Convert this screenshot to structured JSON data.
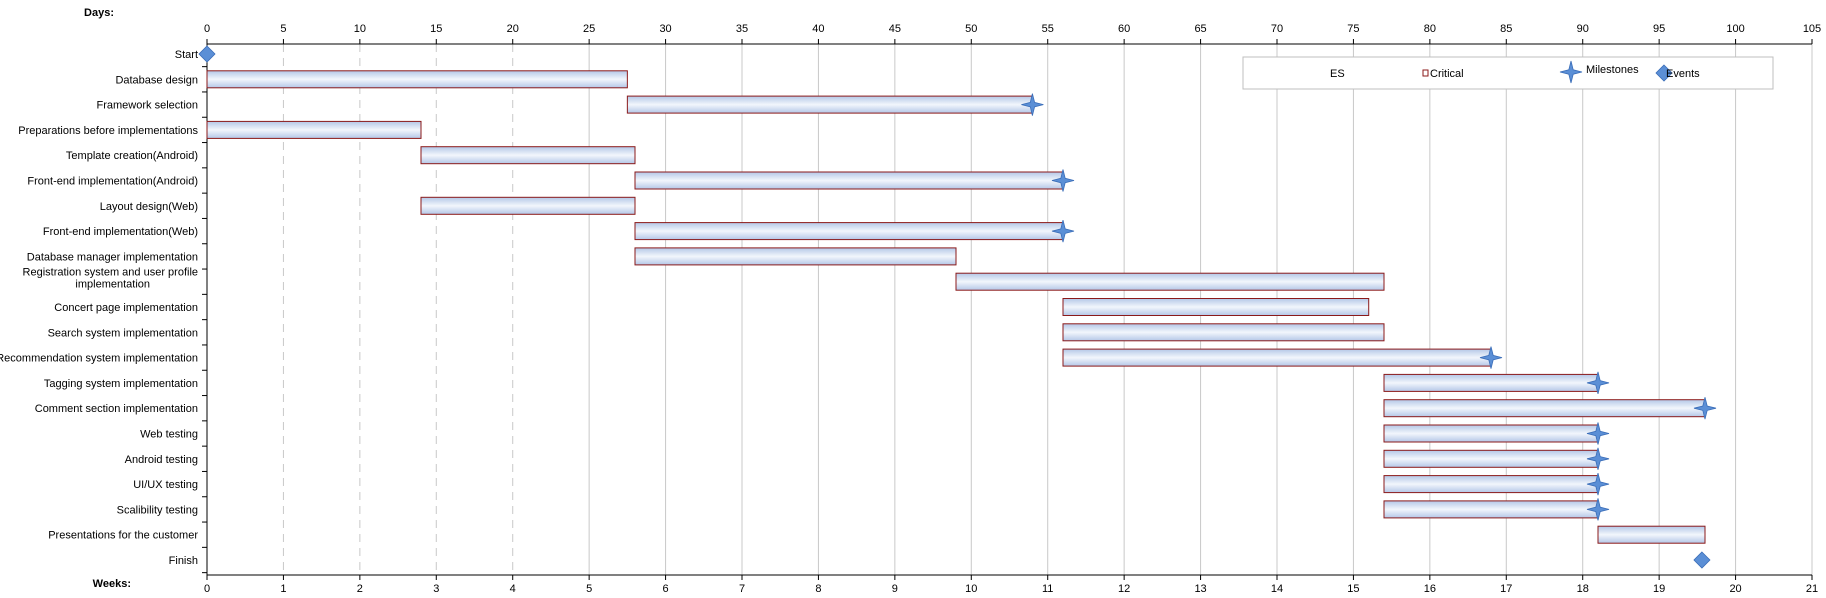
{
  "chart_data": {
    "type": "gantt",
    "top_axis_caption": "Days:",
    "bottom_axis_caption": "Weeks:",
    "day_ticks": [
      0,
      5,
      10,
      15,
      20,
      25,
      30,
      35,
      40,
      45,
      50,
      55,
      60,
      65,
      70,
      75,
      80,
      85,
      90,
      95,
      100,
      105
    ],
    "week_ticks": [
      0,
      1,
      2,
      3,
      4,
      5,
      6,
      7,
      8,
      9,
      10,
      11,
      12,
      13,
      14,
      15,
      16,
      17,
      18,
      19,
      20,
      21
    ],
    "xlim_days": [
      0,
      105
    ],
    "grid": true,
    "legend": {
      "placement": "top-right",
      "items": [
        {
          "label": "ES",
          "symbol": "none"
        },
        {
          "label": "Critical",
          "symbol": "critical-square"
        },
        {
          "label": "Milestones",
          "symbol": "star"
        },
        {
          "label": "Events",
          "symbol": "diamond"
        }
      ]
    },
    "tasks": [
      {
        "name": "Start",
        "start": 0,
        "end": 0,
        "marker": "event"
      },
      {
        "name": "Database design",
        "start": 0,
        "end": 27.5,
        "marker": null
      },
      {
        "name": "Framework selection",
        "start": 27.5,
        "end": 54,
        "marker": "milestone"
      },
      {
        "name": "Preparations before implementations",
        "start": 0,
        "end": 14,
        "marker": null
      },
      {
        "name": "Template creation(Android)",
        "start": 14,
        "end": 28,
        "marker": null
      },
      {
        "name": "Front-end implementation(Android)",
        "start": 28,
        "end": 56,
        "marker": "milestone"
      },
      {
        "name": "Layout design(Web)",
        "start": 14,
        "end": 28,
        "marker": null
      },
      {
        "name": "Front-end implementation(Web)",
        "start": 28,
        "end": 56,
        "marker": "milestone"
      },
      {
        "name": "Database manager implementation",
        "start": 28,
        "end": 49,
        "marker": null
      },
      {
        "name": "Registration system and user profile implementation",
        "lines": [
          "Registration system and user profile",
          "implementation"
        ],
        "start": 49,
        "end": 77,
        "marker": null
      },
      {
        "name": "Concert page implementation",
        "start": 56,
        "end": 76,
        "marker": null
      },
      {
        "name": "Search system implementation",
        "start": 56,
        "end": 77,
        "marker": null
      },
      {
        "name": "Recommendation system implementation",
        "start": 56,
        "end": 84,
        "marker": "milestone"
      },
      {
        "name": "Tagging system implementation",
        "start": 77,
        "end": 91,
        "marker": "milestone"
      },
      {
        "name": "Comment section implementation",
        "start": 77,
        "end": 98,
        "marker": "milestone"
      },
      {
        "name": "Web testing",
        "start": 77,
        "end": 91,
        "marker": "milestone"
      },
      {
        "name": "Android testing",
        "start": 77,
        "end": 91,
        "marker": "milestone"
      },
      {
        "name": "UI/UX testing",
        "start": 77,
        "end": 91,
        "marker": "milestone"
      },
      {
        "name": "Scalibility testing",
        "start": 77,
        "end": 91,
        "marker": "milestone"
      },
      {
        "name": "Presentations for the customer",
        "start": 91,
        "end": 98,
        "marker": null
      },
      {
        "name": "Finish",
        "start": 97.8,
        "end": 97.8,
        "marker": "event"
      }
    ]
  },
  "colors": {
    "bar_fill_edge": "#b4c7e7",
    "bar_fill_center": "#f2f6fc",
    "bar_border": "#8b1a1a",
    "marker_fill": "#5b8fd6",
    "marker_stroke": "#3a6db8",
    "grid": "#c8c8c8",
    "axis": "#000000"
  }
}
